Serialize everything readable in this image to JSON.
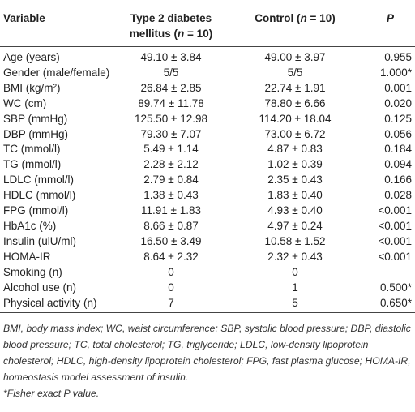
{
  "table": {
    "header": [
      [
        "Variable"
      ],
      [
        "Type 2 diabetes mellitus (",
        "n",
        " = 10)"
      ],
      [
        "Control (",
        "n",
        " = 10)"
      ],
      [
        "P"
      ]
    ],
    "rows": [
      [
        "Age (years)",
        "49.10 ± 3.84",
        "49.00 ± 3.97",
        "0.955"
      ],
      [
        "Gender (male/female)",
        "5/5",
        "5/5",
        "1.000*"
      ],
      [
        "BMI (kg/m²)",
        "26.84 ± 2.85",
        "22.74 ± 1.91",
        "0.001"
      ],
      [
        "WC (cm)",
        "89.74 ± 11.78",
        "78.80 ± 6.66",
        "0.020"
      ],
      [
        "SBP (mmHg)",
        "125.50 ± 12.98",
        "114.20 ± 18.04",
        "0.125"
      ],
      [
        "DBP (mmHg)",
        "79.30 ± 7.07",
        "73.00 ± 6.72",
        "0.056"
      ],
      [
        "TC (mmol/l)",
        "5.49 ± 1.14",
        "4.87 ± 0.83",
        "0.184"
      ],
      [
        "TG (mmol/l)",
        "2.28 ± 2.12",
        "1.02 ± 0.39",
        "0.094"
      ],
      [
        "LDLC (mmol/l)",
        "2.79 ± 0.84",
        "2.35 ± 0.43",
        "0.166"
      ],
      [
        "HDLC (mmol/l)",
        "1.38 ± 0.43",
        "1.83 ± 0.40",
        "0.028"
      ],
      [
        "FPG (mmol/l)",
        "11.91 ± 1.83",
        "4.93 ± 0.40",
        "<0.001"
      ],
      [
        "HbA1c (%)",
        "8.66 ± 0.87",
        "4.97 ± 0.24",
        "<0.001"
      ],
      [
        "Insulin (ulU/ml)",
        "16.50 ± 3.49",
        "10.58 ± 1.52",
        "<0.001"
      ],
      [
        "HOMA-IR",
        "8.64 ± 2.32",
        "2.32 ± 0.43",
        "<0.001"
      ],
      [
        "Smoking (n)",
        "0",
        "0",
        "–"
      ],
      [
        "Alcohol use (n)",
        "0",
        "1",
        "0.500*"
      ],
      [
        "Physical activity (n)",
        "7",
        "5",
        "0.650*"
      ]
    ],
    "footnotes": [
      "BMI, body mass index; WC, waist circumference; SBP, systolic blood pressure; DBP, diastolic blood pressure; TC, total cholesterol; TG, triglyceride; LDLC, low-density lipoprotein cholesterol; HDLC, high-density lipoprotein cholesterol; FPG, fast plasma glucose; HOMA-IR, homeostasis model assessment of insulin.",
      "*Fisher exact P value."
    ]
  }
}
